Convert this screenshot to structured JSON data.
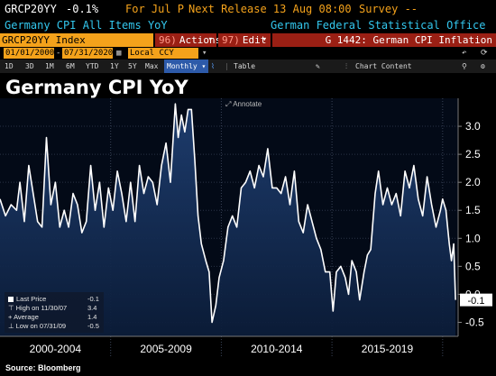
{
  "header": {
    "ticker": "GRCP20YY",
    "last_value": "-0.1%",
    "for_period": "For Jul P",
    "next_release": "Next Release 13 Aug 08:00",
    "survey": "Survey --",
    "description": "Germany CPI All Items YoY",
    "source_agency": "German Federal Statistical Office"
  },
  "toolbar": {
    "security": "GRCP20YY Index",
    "actions_num": "96)",
    "actions_label": "Actions",
    "edit_num": "97)",
    "edit_label": "Edit",
    "graph_label": "G 1442: German CPI Inflation"
  },
  "range": {
    "start_date": "01/01/2000",
    "end_date": "07/31/2020",
    "currency": "Local CCY"
  },
  "periods": {
    "p1": "1D",
    "p2": "3D",
    "p3": "1M",
    "p4": "6M",
    "p5": "YTD",
    "p6": "1Y",
    "p7": "5Y",
    "p8": "Max",
    "freq": "Monthly",
    "table": "Table",
    "chart_content": "Chart Content"
  },
  "colors": {
    "accent": "#f4a21b",
    "cyan": "#33c7ee",
    "red": "#9a1f14",
    "plot_bg": "#0a1a33"
  },
  "annotate_label": "Annotate",
  "legend": {
    "last_price_label": "Last Price",
    "last_price_value": "-0.1",
    "high_label": "High on 11/30/07",
    "high_value": "3.4",
    "average_label": "Average",
    "average_value": "1.4",
    "low_label": "Low on 07/31/09",
    "low_value": "-0.5"
  },
  "source": "Source: Bloomberg",
  "chart_data": {
    "type": "area",
    "title": "Germany CPI YoY",
    "ylim": [
      -0.75,
      3.5
    ],
    "yticks": [
      -0.5,
      0.0,
      0.5,
      1.0,
      1.5,
      2.0,
      2.5,
      3.0
    ],
    "ytick_labels": [
      "-0.5",
      "0.0",
      "0.5",
      "1.0",
      "1.5",
      "2.0",
      "2.5",
      "3.0"
    ],
    "xlim": [
      2000.0,
      2020.7
    ],
    "xtick_labels": [
      "2000-2004",
      "2005-2009",
      "2010-2014",
      "2015-2019"
    ],
    "xtick_positions": [
      2002.5,
      2007.5,
      2012.5,
      2017.5
    ],
    "last_value_label": "-0.1",
    "grid": true,
    "series": [
      {
        "name": "",
        "points": [
          [
            2000.0,
            1.7
          ],
          [
            2000.25,
            1.4
          ],
          [
            2000.5,
            1.6
          ],
          [
            2000.75,
            1.5
          ],
          [
            2000.9,
            2.0
          ],
          [
            2001.1,
            1.3
          ],
          [
            2001.3,
            2.3
          ],
          [
            2001.5,
            1.8
          ],
          [
            2001.7,
            1.3
          ],
          [
            2001.9,
            1.2
          ],
          [
            2002.1,
            2.8
          ],
          [
            2002.3,
            1.6
          ],
          [
            2002.5,
            2.0
          ],
          [
            2002.7,
            1.2
          ],
          [
            2002.9,
            1.5
          ],
          [
            2003.1,
            1.2
          ],
          [
            2003.3,
            1.8
          ],
          [
            2003.5,
            1.6
          ],
          [
            2003.7,
            1.1
          ],
          [
            2003.9,
            1.3
          ],
          [
            2004.1,
            2.3
          ],
          [
            2004.3,
            1.5
          ],
          [
            2004.5,
            2.0
          ],
          [
            2004.7,
            1.2
          ],
          [
            2004.9,
            1.9
          ],
          [
            2005.1,
            1.5
          ],
          [
            2005.3,
            2.2
          ],
          [
            2005.5,
            1.8
          ],
          [
            2005.7,
            1.3
          ],
          [
            2005.9,
            2.0
          ],
          [
            2006.1,
            1.3
          ],
          [
            2006.3,
            2.3
          ],
          [
            2006.5,
            1.8
          ],
          [
            2006.7,
            2.1
          ],
          [
            2006.9,
            2.0
          ],
          [
            2007.1,
            1.6
          ],
          [
            2007.3,
            2.3
          ],
          [
            2007.5,
            2.7
          ],
          [
            2007.7,
            2.0
          ],
          [
            2007.92,
            3.4
          ],
          [
            2008.05,
            2.8
          ],
          [
            2008.2,
            3.2
          ],
          [
            2008.35,
            2.9
          ],
          [
            2008.5,
            3.3
          ],
          [
            2008.65,
            3.3
          ],
          [
            2008.8,
            2.4
          ],
          [
            2008.95,
            1.4
          ],
          [
            2009.1,
            0.9
          ],
          [
            2009.3,
            0.6
          ],
          [
            2009.45,
            0.4
          ],
          [
            2009.58,
            -0.5
          ],
          [
            2009.75,
            -0.2
          ],
          [
            2009.9,
            0.3
          ],
          [
            2010.1,
            0.6
          ],
          [
            2010.3,
            1.2
          ],
          [
            2010.5,
            1.4
          ],
          [
            2010.7,
            1.2
          ],
          [
            2010.9,
            1.9
          ],
          [
            2011.1,
            2.0
          ],
          [
            2011.3,
            2.2
          ],
          [
            2011.5,
            1.9
          ],
          [
            2011.7,
            2.3
          ],
          [
            2011.9,
            2.1
          ],
          [
            2012.1,
            2.6
          ],
          [
            2012.3,
            1.9
          ],
          [
            2012.5,
            1.9
          ],
          [
            2012.7,
            1.8
          ],
          [
            2012.9,
            2.1
          ],
          [
            2013.1,
            1.6
          ],
          [
            2013.3,
            2.2
          ],
          [
            2013.5,
            1.3
          ],
          [
            2013.7,
            1.1
          ],
          [
            2013.9,
            1.6
          ],
          [
            2014.1,
            1.3
          ],
          [
            2014.3,
            1.0
          ],
          [
            2014.5,
            0.8
          ],
          [
            2014.7,
            0.4
          ],
          [
            2014.9,
            0.4
          ],
          [
            2015.05,
            -0.3
          ],
          [
            2015.2,
            0.4
          ],
          [
            2015.4,
            0.5
          ],
          [
            2015.6,
            0.3
          ],
          [
            2015.75,
            0.0
          ],
          [
            2015.9,
            0.6
          ],
          [
            2016.1,
            0.4
          ],
          [
            2016.25,
            -0.1
          ],
          [
            2016.45,
            0.4
          ],
          [
            2016.6,
            0.7
          ],
          [
            2016.75,
            0.8
          ],
          [
            2016.95,
            1.8
          ],
          [
            2017.1,
            2.2
          ],
          [
            2017.3,
            1.6
          ],
          [
            2017.5,
            1.9
          ],
          [
            2017.7,
            1.6
          ],
          [
            2017.9,
            1.8
          ],
          [
            2018.1,
            1.4
          ],
          [
            2018.3,
            2.2
          ],
          [
            2018.5,
            1.9
          ],
          [
            2018.7,
            2.3
          ],
          [
            2018.9,
            1.7
          ],
          [
            2019.1,
            1.4
          ],
          [
            2019.3,
            2.1
          ],
          [
            2019.5,
            1.6
          ],
          [
            2019.7,
            1.2
          ],
          [
            2019.9,
            1.5
          ],
          [
            2020.0,
            1.7
          ],
          [
            2020.15,
            1.5
          ],
          [
            2020.3,
            0.9
          ],
          [
            2020.4,
            0.6
          ],
          [
            2020.5,
            0.9
          ],
          [
            2020.58,
            -0.1
          ]
        ]
      }
    ]
  }
}
